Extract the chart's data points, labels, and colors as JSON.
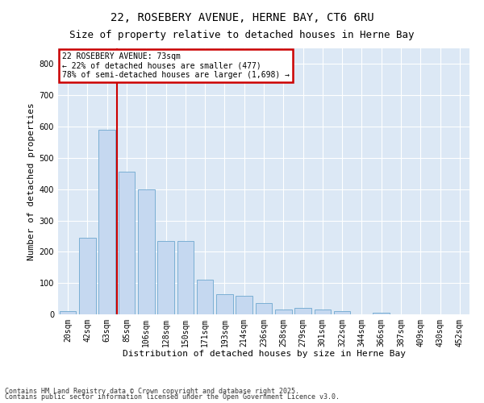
{
  "title1": "22, ROSEBERY AVENUE, HERNE BAY, CT6 6RU",
  "title2": "Size of property relative to detached houses in Herne Bay",
  "xlabel": "Distribution of detached houses by size in Herne Bay",
  "ylabel": "Number of detached properties",
  "bar_color": "#c5d8f0",
  "bar_edge_color": "#7bafd4",
  "bg_color": "#dce8f5",
  "grid_color": "#ffffff",
  "fig_bg_color": "#ffffff",
  "vline_color": "#cc0000",
  "categories": [
    "20sqm",
    "42sqm",
    "63sqm",
    "85sqm",
    "106sqm",
    "128sqm",
    "150sqm",
    "171sqm",
    "193sqm",
    "214sqm",
    "236sqm",
    "258sqm",
    "279sqm",
    "301sqm",
    "322sqm",
    "344sqm",
    "366sqm",
    "387sqm",
    "409sqm",
    "430sqm",
    "452sqm"
  ],
  "values": [
    10,
    245,
    590,
    455,
    400,
    235,
    235,
    110,
    65,
    60,
    35,
    15,
    20,
    15,
    10,
    0,
    5,
    0,
    0,
    0,
    0
  ],
  "n_bars": 21,
  "vline_bar_index": 2,
  "ylim": [
    0,
    850
  ],
  "yticks": [
    0,
    100,
    200,
    300,
    400,
    500,
    600,
    700,
    800
  ],
  "legend_text1": "22 ROSEBERY AVENUE: 73sqm",
  "legend_text2": "← 22% of detached houses are smaller (477)",
  "legend_text3": "78% of semi-detached houses are larger (1,698) →",
  "legend_box_color": "#cc0000",
  "title1_fontsize": 10,
  "title2_fontsize": 9,
  "xlabel_fontsize": 8,
  "ylabel_fontsize": 8,
  "tick_fontsize": 7,
  "legend_fontsize": 7,
  "footer_fontsize": 6,
  "footer1": "Contains HM Land Registry data © Crown copyright and database right 2025.",
  "footer2": "Contains public sector information licensed under the Open Government Licence v3.0."
}
